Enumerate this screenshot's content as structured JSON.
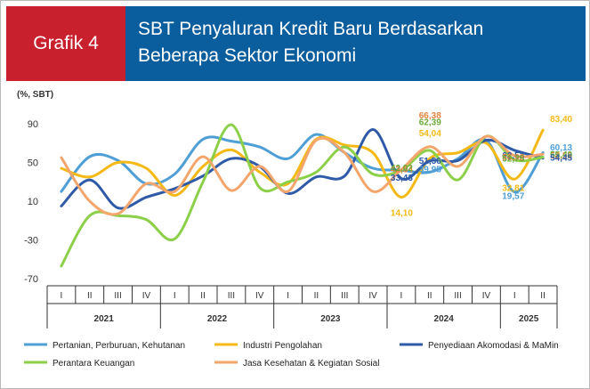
{
  "header": {
    "label": "Grafik 4",
    "title_line1": "SBT Penyaluran Kredit Baru Berdasarkan",
    "title_line2": "Beberapa Sektor Ekonomi"
  },
  "chart_data": {
    "type": "line",
    "ylabel": "(%, SBT)",
    "ylim": [
      -70,
      90
    ],
    "yticks": [
      90,
      50,
      10,
      -30,
      -70
    ],
    "quarters": [
      "I",
      "II",
      "III",
      "IV",
      "I",
      "II",
      "III",
      "IV",
      "I",
      "II",
      "III",
      "IV",
      "I",
      "II",
      "III",
      "IV",
      "I",
      "II"
    ],
    "years": [
      "2021",
      "2022",
      "2023",
      "2024",
      "2025"
    ],
    "x": [
      "2021-I",
      "2021-II",
      "2021-III",
      "2021-IV",
      "2022-I",
      "2022-II",
      "2022-III",
      "2022-IV",
      "2023-I",
      "2023-II",
      "2023-III",
      "2023-IV",
      "2024-I",
      "2024-II",
      "2024-III",
      "2024-IV",
      "2025-I",
      "2025-II"
    ],
    "grid": false,
    "legend_position": "bottom",
    "series": [
      {
        "name": "Pertanian, Perburuan, Kehutanan",
        "color": "#4f9fd6",
        "values": [
          20,
          56,
          52,
          28,
          38,
          74,
          72,
          66,
          54,
          79,
          60,
          44,
          42.02,
          39.95,
          54,
          73,
          19.57,
          60.13
        ]
      },
      {
        "name": "Industri Pengolahan",
        "color": "#f5b916",
        "values": [
          44,
          35,
          50,
          44,
          16,
          46,
          63,
          40,
          28,
          74,
          68,
          60,
          14.1,
          54.04,
          60,
          70,
          32.81,
          83.4
        ]
      },
      {
        "name": "Penyediaan Akomodasi & MaMin",
        "color": "#2e5aa8",
        "values": [
          5,
          32,
          3,
          14,
          23,
          36,
          54,
          46,
          18,
          35,
          36,
          84,
          33.43,
          51.56,
          52,
          73,
          62.53,
          54.45
        ]
      },
      {
        "name": "Perantara Keuangan",
        "color": "#8ccf48",
        "values": [
          -57,
          -5,
          -5,
          -9,
          -29,
          30,
          89,
          24,
          30,
          40,
          66,
          38,
          42.02,
          62.39,
          32,
          77,
          52.75,
          55.49
        ]
      },
      {
        "name": "Jasa Kesehatan & Kegiatan Sosial",
        "color": "#f3a56c",
        "values": [
          55,
          10,
          -3,
          28,
          20,
          56,
          21,
          46,
          20,
          73,
          60,
          20,
          42.54,
          66.38,
          46,
          77,
          56.92,
          58.59
        ]
      }
    ],
    "data_labels": [
      {
        "text": "66,38",
        "color": "#e8843f",
        "quarter": "2024-II",
        "y": 66.38
      },
      {
        "text": "62,39",
        "color": "#6aa93a",
        "quarter": "2024-II",
        "y": 62.39
      },
      {
        "text": "54,04",
        "color": "#f5b916",
        "quarter": "2024-II",
        "y": 54.04
      },
      {
        "text": "51,56",
        "color": "#2e5aa8",
        "quarter": "2024-II",
        "y": 51.56
      },
      {
        "text": "39,95",
        "color": "#4f9fd6",
        "quarter": "2024-II",
        "y": 39.95
      },
      {
        "text": "42,54",
        "color": "#e8843f",
        "quarter": "2024-I",
        "y": 42.54
      },
      {
        "text": "42,02",
        "color": "#6aa93a",
        "quarter": "2024-I",
        "y": 42.02
      },
      {
        "text": "33,43",
        "color": "#2e5aa8",
        "quarter": "2024-I",
        "y": 33.43
      },
      {
        "text": "14,10",
        "color": "#f5b916",
        "quarter": "2024-I",
        "y": 14.1
      },
      {
        "text": "62,53",
        "color": "#2e5aa8",
        "quarter": "2025-I",
        "y": 62.53
      },
      {
        "text": "56,92",
        "color": "#e8843f",
        "quarter": "2025-I",
        "y": 56.92
      },
      {
        "text": "52,75",
        "color": "#6aa93a",
        "quarter": "2025-I",
        "y": 52.75
      },
      {
        "text": "32,81",
        "color": "#f5b916",
        "quarter": "2025-I",
        "y": 32.81
      },
      {
        "text": "19,57",
        "color": "#4f9fd6",
        "quarter": "2025-I",
        "y": 19.57
      },
      {
        "text": "83,40",
        "color": "#f5b916",
        "quarter": "2025-II",
        "y": 83.4
      },
      {
        "text": "60,13",
        "color": "#4f9fd6",
        "quarter": "2025-II",
        "y": 60.13
      },
      {
        "text": "58,59",
        "color": "#e8843f",
        "quarter": "2025-II",
        "y": 58.59
      },
      {
        "text": "55,49",
        "color": "#6aa93a",
        "quarter": "2025-II",
        "y": 55.49
      },
      {
        "text": "54,45",
        "color": "#2e5aa8",
        "quarter": "2025-II",
        "y": 54.45
      }
    ]
  }
}
